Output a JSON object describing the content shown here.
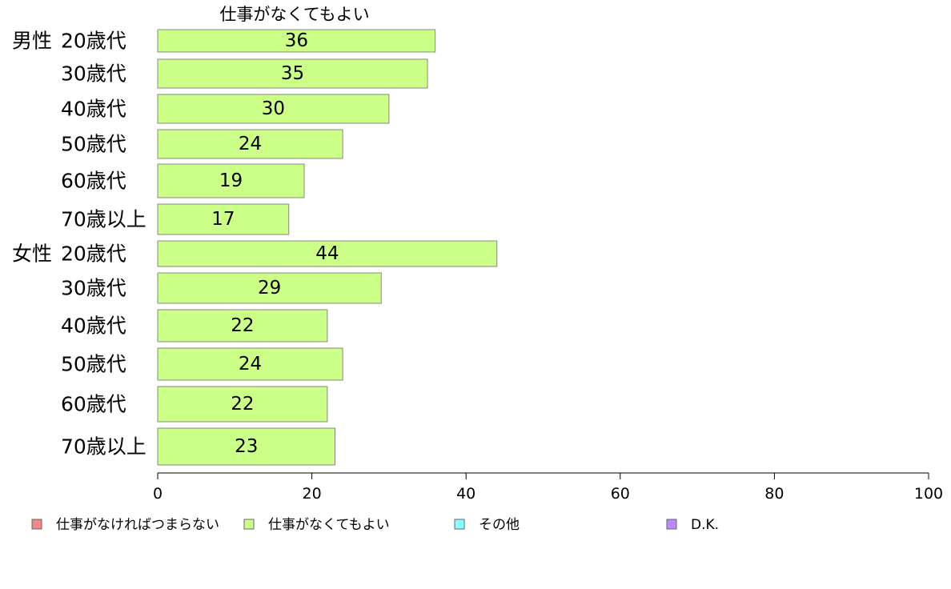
{
  "chart_data": {
    "type": "bar",
    "orientation": "horizontal",
    "title": "",
    "series_title": "仕事がなくてもよい",
    "groups": [
      {
        "label": "男性",
        "start_index": 0
      },
      {
        "label": "女性",
        "start_index": 6
      }
    ],
    "categories": [
      "20歳代",
      "30歳代",
      "40歳代",
      "50歳代",
      "60歳代",
      "70歳以上",
      "20歳代",
      "30歳代",
      "40歳代",
      "50歳代",
      "60歳代",
      "70歳以上"
    ],
    "series": [
      {
        "name": "仕事がなくてもよい",
        "color": "#ccff88",
        "values": [
          36,
          35,
          30,
          24,
          19,
          17,
          44,
          29,
          22,
          24,
          22,
          23
        ]
      }
    ],
    "value_axis": {
      "min": 0,
      "max": 100,
      "ticks": [
        0,
        20,
        40,
        60,
        80,
        100
      ]
    },
    "legend": {
      "position": "bottom",
      "items": [
        {
          "label": "仕事がなければつまらない",
          "color": "#f08888"
        },
        {
          "label": "仕事がなくてもよい",
          "color": "#ccff88"
        },
        {
          "label": "その他",
          "color": "#88ffff"
        },
        {
          "label": "D.K.",
          "color": "#bb88ff"
        }
      ]
    },
    "grid": false
  }
}
